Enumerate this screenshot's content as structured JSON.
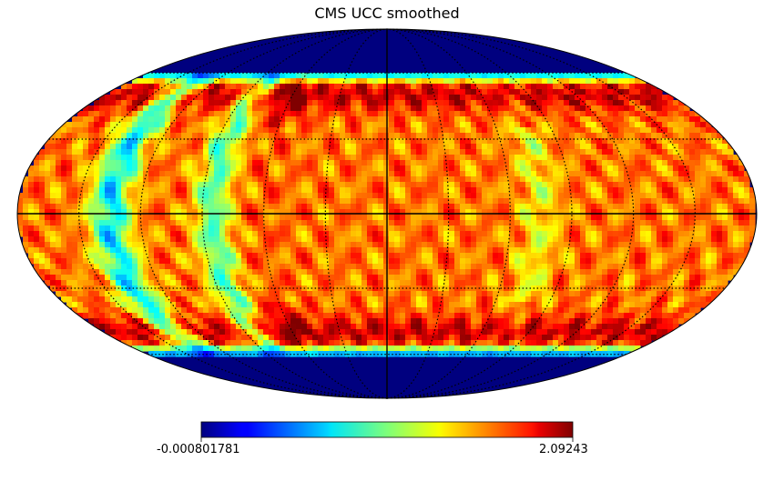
{
  "chart_data": {
    "type": "heatmap",
    "projection": "mollweide",
    "title": "CMS UCC smoothed",
    "colormap": "jet",
    "colorbar": {
      "min_label": "-0.000801781",
      "max_label": "2.09243",
      "min": -0.000801781,
      "max": 2.09243
    },
    "latitude_band_deg": [
      -60,
      60
    ],
    "graticule": {
      "meridian_step_deg": 30,
      "parallel_step_deg": 30
    },
    "low_value_longitudes_deg": [
      -135,
      -85
    ],
    "high_value_latitudes_deg": [
      -55,
      -40,
      40,
      55
    ]
  }
}
